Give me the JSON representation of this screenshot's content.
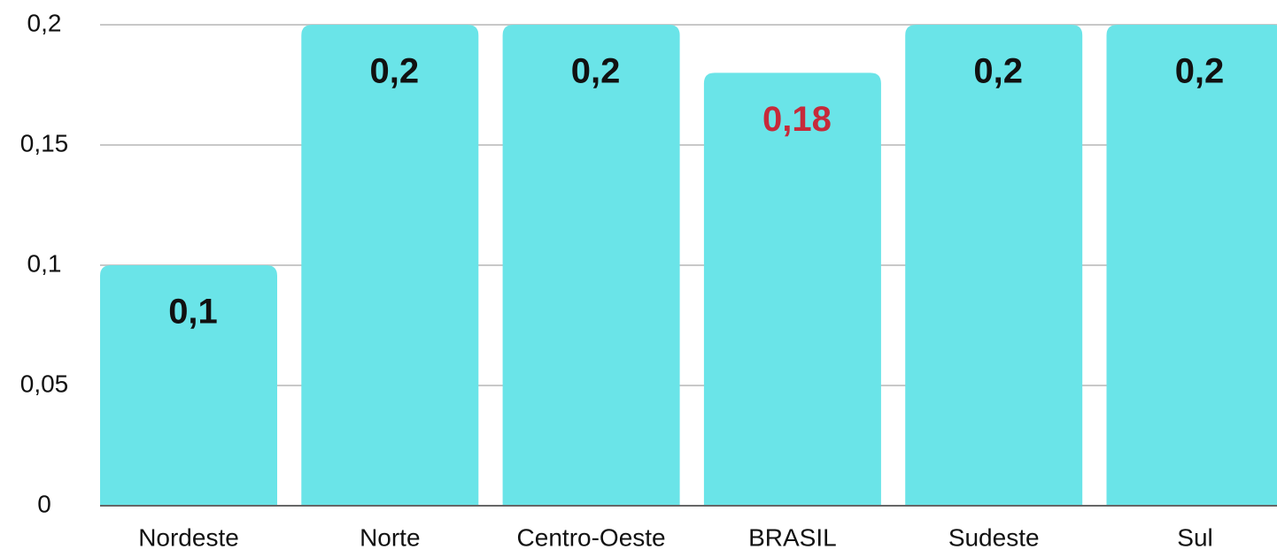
{
  "chart_data": {
    "type": "bar",
    "categories": [
      "Nordeste",
      "Norte",
      "Centro-Oeste",
      "BRASIL",
      "Sudeste",
      "Sul"
    ],
    "values": [
      0.1,
      0.2,
      0.2,
      0.18,
      0.2,
      0.2
    ],
    "value_labels": [
      "0,1",
      "0,2",
      "0,2",
      "0,18",
      "0,2",
      "0,2"
    ],
    "color": "#6ae4e8",
    "label_colors": [
      "#111111",
      "#111111",
      "#111111",
      "#c62a3a",
      "#111111",
      "#111111"
    ],
    "ylim": [
      0,
      0.2
    ],
    "yticks": [
      0,
      {
        "value": 0.05,
        "label": "0,05"
      },
      {
        "value": 0.1,
        "label": "0,1"
      },
      {
        "value": 0.15,
        "label": "0,15"
      },
      {
        "value": 0.2,
        "label": "0,2"
      }
    ],
    "grid": true
  }
}
